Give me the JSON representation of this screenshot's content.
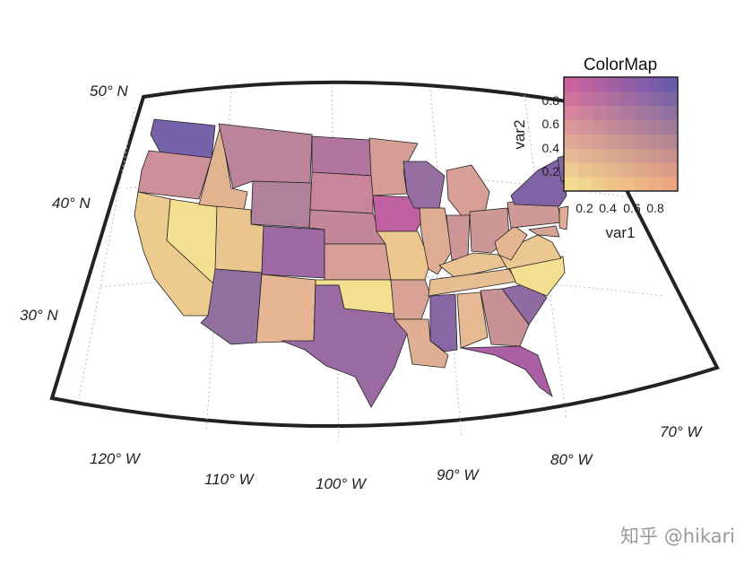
{
  "map": {
    "parallel_labels": [
      "50° N",
      "40° N",
      "30° N"
    ],
    "meridian_labels": [
      "120° W",
      "110° W",
      "100° W",
      "90° W",
      "80° W",
      "70° W"
    ],
    "states": [
      {
        "name": "Washington",
        "v1": 0.95,
        "v2": 0.85
      },
      {
        "name": "Oregon",
        "v1": 0.3,
        "v2": 0.55
      },
      {
        "name": "California",
        "v1": 0.15,
        "v2": 0.15
      },
      {
        "name": "Nevada",
        "v1": 0.05,
        "v2": 0.05
      },
      {
        "name": "Idaho",
        "v1": 0.35,
        "v2": 0.25
      },
      {
        "name": "Montana",
        "v1": 0.5,
        "v2": 0.6
      },
      {
        "name": "Wyoming",
        "v1": 0.65,
        "v2": 0.6
      },
      {
        "name": "Utah",
        "v1": 0.25,
        "v2": 0.15
      },
      {
        "name": "Arizona",
        "v1": 0.9,
        "v2": 0.7
      },
      {
        "name": "Colorado",
        "v1": 0.55,
        "v2": 0.85
      },
      {
        "name": "New Mexico",
        "v1": 0.05,
        "v2": 0.35
      },
      {
        "name": "North Dakota",
        "v1": 0.45,
        "v2": 0.75
      },
      {
        "name": "South Dakota",
        "v1": 0.25,
        "v2": 0.65
      },
      {
        "name": "Nebraska",
        "v1": 0.4,
        "v2": 0.6
      },
      {
        "name": "Kansas",
        "v1": 0.25,
        "v2": 0.45
      },
      {
        "name": "Oklahoma",
        "v1": 0.05,
        "v2": 0.05
      },
      {
        "name": "Texas",
        "v1": 0.65,
        "v2": 0.8
      },
      {
        "name": "Minnesota",
        "v1": 0.3,
        "v2": 0.45
      },
      {
        "name": "Iowa",
        "v1": 0.15,
        "v2": 0.95
      },
      {
        "name": "Missouri",
        "v1": 0.2,
        "v2": 0.15
      },
      {
        "name": "Arkansas",
        "v1": 0.3,
        "v2": 0.4
      },
      {
        "name": "Louisiana",
        "v1": 0.2,
        "v2": 0.35
      },
      {
        "name": "Wisconsin",
        "v1": 0.75,
        "v2": 0.75
      },
      {
        "name": "Illinois",
        "v1": 0.25,
        "v2": 0.35
      },
      {
        "name": "Michigan",
        "v1": 0.25,
        "v2": 0.45
      },
      {
        "name": "Indiana",
        "v1": 0.35,
        "v2": 0.5
      },
      {
        "name": "Ohio",
        "v1": 0.45,
        "v2": 0.45
      },
      {
        "name": "Kentucky",
        "v1": 0.05,
        "v2": 0.25
      },
      {
        "name": "Tennessee",
        "v1": 0.15,
        "v2": 0.25
      },
      {
        "name": "Mississippi",
        "v1": 0.85,
        "v2": 0.8
      },
      {
        "name": "Alabama",
        "v1": 0.1,
        "v2": 0.3
      },
      {
        "name": "Georgia",
        "v1": 0.45,
        "v2": 0.5
      },
      {
        "name": "Florida",
        "v1": 0.35,
        "v2": 0.95
      },
      {
        "name": "South Carolina",
        "v1": 0.85,
        "v2": 0.75
      },
      {
        "name": "North Carolina",
        "v1": 0.05,
        "v2": 0.05
      },
      {
        "name": "Virginia",
        "v1": 0.1,
        "v2": 0.2
      },
      {
        "name": "West Virginia",
        "v1": 0.05,
        "v2": 0.35
      },
      {
        "name": "Pennsylvania",
        "v1": 0.4,
        "v2": 0.45
      },
      {
        "name": "New York",
        "v1": 0.85,
        "v2": 0.85
      },
      {
        "name": "Vermont",
        "v1": 0.9,
        "v2": 0.8
      },
      {
        "name": "New Hampshire",
        "v1": 0.8,
        "v2": 0.7
      },
      {
        "name": "Maine",
        "v1": 0.85,
        "v2": 0.75
      },
      {
        "name": "Massachusetts",
        "v1": 0.75,
        "v2": 0.55
      },
      {
        "name": "New Jersey",
        "v1": 0.1,
        "v2": 0.4
      },
      {
        "name": "Maryland",
        "v1": 0.3,
        "v2": 0.4
      }
    ]
  },
  "colormap": {
    "title": "ColorMap",
    "xlabel": "var1",
    "ylabel": "var2",
    "xticks": [
      "0.2",
      "0.4",
      "0.6",
      "0.8"
    ],
    "yticks": [
      "0.8",
      "0.6",
      "0.4",
      "0.2"
    ],
    "corner_colors": {
      "low_low": "#f5e98f",
      "high_low": "#f5a67c",
      "low_high": "#cf5a9e",
      "high_high": "#5a55b0"
    }
  },
  "watermark": "知乎 @hikari"
}
